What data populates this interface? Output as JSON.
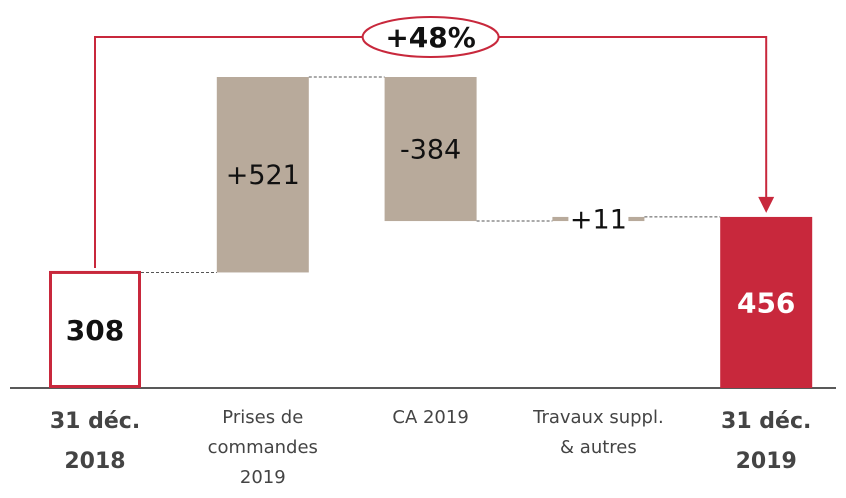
{
  "chart_data": {
    "type": "waterfall",
    "categories": [
      [
        "31 déc.",
        "2018"
      ],
      [
        "Prises de",
        "commandes",
        "2019"
      ],
      [
        "CA 2019"
      ],
      [
        "Travaux suppl.",
        "& autres"
      ],
      [
        "31 déc.",
        "2019"
      ]
    ],
    "values": [
      308,
      521,
      -384,
      11,
      456
    ],
    "value_labels": [
      "308",
      "+521",
      "-384",
      "+11",
      "456"
    ],
    "annotation": "+48%",
    "color_total": "#c8283c",
    "color_delta": "#b8aa9b"
  }
}
